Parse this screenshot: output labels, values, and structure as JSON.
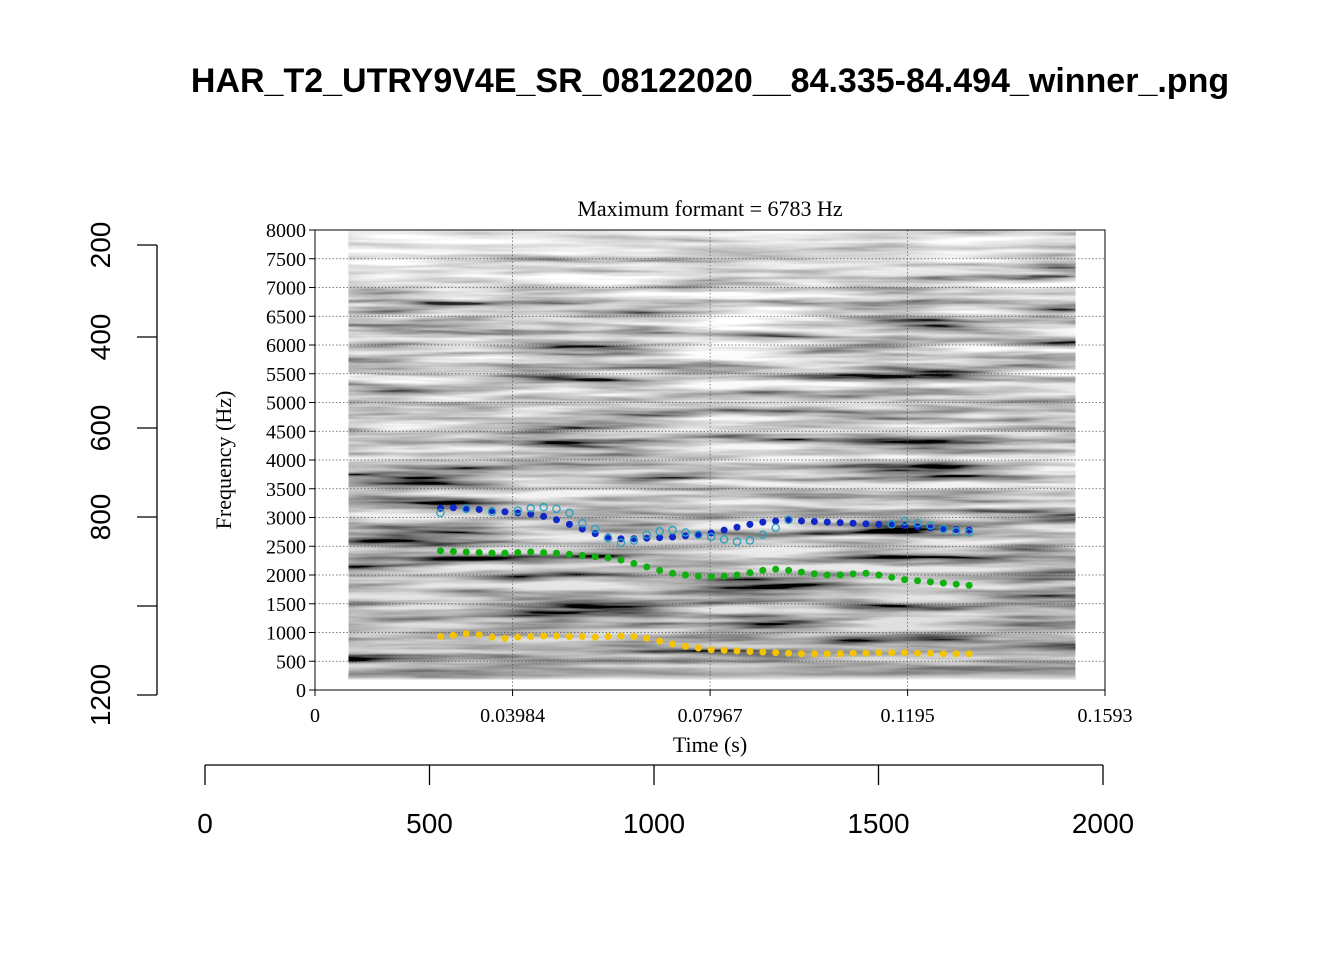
{
  "page": {
    "title": "HAR_T2_UTRY9V4E_SR_08122020__84.335-84.494_winner_.png"
  },
  "chart_data": {
    "type": "scatter",
    "title": "Maximum formant  =  6783 Hz",
    "xlabel": "Time (s)",
    "ylabel": "Frequency (Hz)",
    "xlim": [
      0,
      0.1593
    ],
    "ylim": [
      0,
      8000
    ],
    "x_ticks": [
      "0",
      "0.03984",
      "0.07967",
      "0.1195",
      "0.1593"
    ],
    "y_ticks": [
      "0",
      "500",
      "1000",
      "1500",
      "2000",
      "2500",
      "3000",
      "3500",
      "4000",
      "4500",
      "5000",
      "5500",
      "6000",
      "6500",
      "7000",
      "7500",
      "8000"
    ],
    "grid": true,
    "outer_axes": {
      "bottom": {
        "ticks": [
          "0",
          "500",
          "1000",
          "1500",
          "2000"
        ],
        "range": [
          0,
          2000
        ]
      },
      "left": {
        "ticks": [
          "200",
          "400",
          "600",
          "800",
          "1200"
        ]
      }
    },
    "spectrogram_time_range": [
      0.0068,
      0.1533
    ],
    "colors": {
      "F1": "#f5c400",
      "F2": "#10b010",
      "F3": "#1028c8",
      "F3_alt": "#2aa0c0"
    },
    "series": [
      {
        "key": "F1",
        "x": [
          0.0253,
          0.0279,
          0.0305,
          0.0331,
          0.0357,
          0.0383,
          0.0409,
          0.0435,
          0.0461,
          0.0487,
          0.0513,
          0.0539,
          0.0565,
          0.0591,
          0.0617,
          0.0643,
          0.0669,
          0.0695,
          0.0721,
          0.0747,
          0.0773,
          0.0799,
          0.0825,
          0.0851,
          0.0877,
          0.0903,
          0.0929,
          0.0955,
          0.0981,
          0.1007,
          0.1033,
          0.1059,
          0.1085,
          0.1111,
          0.1137,
          0.1163,
          0.1189,
          0.1215,
          0.1241,
          0.1267,
          0.1293,
          0.1319
        ],
        "y": [
          930,
          950,
          980,
          960,
          920,
          900,
          920,
          930,
          940,
          940,
          930,
          930,
          920,
          930,
          940,
          930,
          900,
          850,
          800,
          760,
          730,
          700,
          690,
          680,
          670,
          660,
          650,
          640,
          630,
          630,
          630,
          630,
          640,
          640,
          650,
          650,
          650,
          640,
          640,
          630,
          630,
          630
        ]
      },
      {
        "key": "F2",
        "x": [
          0.0253,
          0.0279,
          0.0305,
          0.0331,
          0.0357,
          0.0383,
          0.0409,
          0.0435,
          0.0461,
          0.0487,
          0.0513,
          0.0539,
          0.0565,
          0.0591,
          0.0617,
          0.0643,
          0.0669,
          0.0695,
          0.0721,
          0.0747,
          0.0773,
          0.0799,
          0.0825,
          0.0851,
          0.0877,
          0.0903,
          0.0929,
          0.0955,
          0.0981,
          0.1007,
          0.1033,
          0.1059,
          0.1085,
          0.1111,
          0.1137,
          0.1163,
          0.1189,
          0.1215,
          0.1241,
          0.1267,
          0.1293,
          0.1319
        ],
        "y": [
          2420,
          2410,
          2400,
          2390,
          2380,
          2380,
          2390,
          2400,
          2390,
          2380,
          2360,
          2340,
          2320,
          2300,
          2260,
          2200,
          2140,
          2080,
          2030,
          2000,
          1980,
          1970,
          1980,
          2000,
          2040,
          2080,
          2100,
          2080,
          2050,
          2020,
          2000,
          2000,
          2020,
          2030,
          2000,
          1960,
          1920,
          1900,
          1880,
          1860,
          1840,
          1820
        ]
      },
      {
        "key": "F3",
        "x": [
          0.0253,
          0.0279,
          0.0305,
          0.0331,
          0.0357,
          0.0383,
          0.0409,
          0.0435,
          0.0461,
          0.0487,
          0.0513,
          0.0539,
          0.0565,
          0.0591,
          0.0617,
          0.0643,
          0.0669,
          0.0695,
          0.0721,
          0.0747,
          0.0773,
          0.0799,
          0.0825,
          0.0851,
          0.0877,
          0.0903,
          0.0929,
          0.0955,
          0.0981,
          0.1007,
          0.1033,
          0.1059,
          0.1085,
          0.1111,
          0.1137,
          0.1163,
          0.1189,
          0.1215,
          0.1241,
          0.1267,
          0.1293,
          0.1319
        ],
        "y": [
          3160,
          3170,
          3160,
          3140,
          3120,
          3100,
          3080,
          3060,
          3020,
          2960,
          2880,
          2800,
          2720,
          2660,
          2630,
          2630,
          2640,
          2650,
          2660,
          2680,
          2700,
          2730,
          2780,
          2830,
          2880,
          2920,
          2940,
          2950,
          2940,
          2930,
          2920,
          2910,
          2900,
          2890,
          2880,
          2870,
          2860,
          2840,
          2820,
          2800,
          2790,
          2780
        ]
      },
      {
        "key": "F3_alt",
        "x": [
          0.0253,
          0.0305,
          0.0357,
          0.0409,
          0.0435,
          0.0461,
          0.0487,
          0.0513,
          0.0539,
          0.0565,
          0.0591,
          0.0617,
          0.0643,
          0.0669,
          0.0695,
          0.0721,
          0.0747,
          0.0773,
          0.0799,
          0.0825,
          0.0851,
          0.0877,
          0.0903,
          0.0929,
          0.0955,
          0.1163,
          0.1189,
          0.1215,
          0.1241,
          0.1267,
          0.1293,
          0.1319
        ],
        "y": [
          3080,
          3150,
          3100,
          3120,
          3160,
          3180,
          3150,
          3080,
          2900,
          2800,
          2640,
          2560,
          2600,
          2700,
          2760,
          2780,
          2740,
          2700,
          2660,
          2620,
          2580,
          2600,
          2700,
          2820,
          2960,
          2880,
          2940,
          2900,
          2860,
          2800,
          2760,
          2740
        ]
      }
    ]
  }
}
